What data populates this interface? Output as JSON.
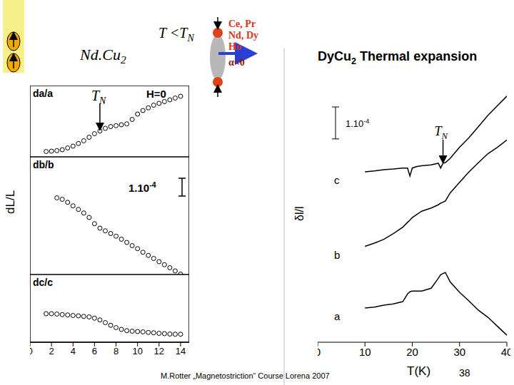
{
  "slide": {
    "formula": "Nd.Cu2",
    "condition": "T <TN",
    "legend_lines": [
      "Ce, Pr",
      "Nd, Dy",
      "Ho",
      "α<0"
    ],
    "shared_y_label": "dL/L",
    "footer": "M.Rotter „Magnetostriction“ Course Lorena 2007",
    "page": "38"
  },
  "chart_data": [
    {
      "type": "scatter",
      "title": "da/a",
      "marker": "circle",
      "color": "#000000",
      "x": [
        1.5,
        2,
        2.5,
        3,
        3.5,
        4,
        4.5,
        5,
        5.5,
        6,
        6.5,
        7,
        7.5,
        8,
        8.5,
        9,
        9.5,
        10,
        10.5,
        11,
        11.5,
        12,
        12.5,
        13,
        13.5,
        14
      ],
      "values": [
        0.3,
        0.32,
        0.35,
        0.4,
        0.5,
        0.6,
        0.75,
        0.9,
        1.1,
        1.3,
        1.45,
        1.6,
        1.7,
        1.75,
        1.8,
        1.85,
        2.1,
        2.4,
        2.6,
        2.75,
        2.9,
        3.0,
        3.1,
        3.2,
        3.3,
        3.4
      ],
      "xlim": [
        0,
        14.8
      ],
      "xticks": [
        0,
        2,
        4,
        6,
        8,
        10,
        12,
        14
      ],
      "ylim": [
        0,
        4
      ],
      "tick_labels": false,
      "annotations": [
        {
          "text": "TN",
          "x": 6.5
        },
        {
          "text": "H=0"
        }
      ]
    },
    {
      "type": "scatter",
      "title": "db/b",
      "marker": "circle",
      "color": "#000000",
      "x": [
        2.5,
        3,
        3.5,
        4,
        4.5,
        5,
        5.5,
        6,
        6.5,
        7,
        7.5,
        8,
        8.5,
        9,
        9.5,
        10,
        10.5,
        11,
        11.5,
        12,
        12.5,
        13,
        13.5,
        14
      ],
      "values": [
        4.3,
        4.22,
        4.05,
        3.85,
        3.65,
        3.45,
        3.2,
        2.85,
        2.6,
        2.45,
        2.3,
        2.15,
        1.98,
        1.8,
        1.62,
        1.45,
        1.25,
        1.07,
        0.9,
        0.72,
        0.55,
        0.38,
        0.2,
        0.02
      ],
      "xlim": [
        0,
        14.8
      ],
      "xticks": [
        0,
        2,
        4,
        6,
        8,
        10,
        12,
        14
      ],
      "ylim": [
        0,
        6.6
      ],
      "tick_labels": false,
      "scale_bar": {
        "text": "1.10",
        "exponent": "-4",
        "value": 1
      }
    },
    {
      "type": "scatter",
      "title": "dc/c",
      "marker": "circle",
      "color": "#000000",
      "x": [
        1.5,
        2,
        2.5,
        3,
        3.5,
        4,
        4.5,
        5,
        5.5,
        6,
        6.5,
        7,
        7.5,
        8,
        8.5,
        9,
        9.5,
        10,
        10.5,
        11,
        11.5,
        12,
        12.5,
        13,
        13.5,
        14
      ],
      "values": [
        1.6,
        1.6,
        1.58,
        1.55,
        1.53,
        1.5,
        1.48,
        1.45,
        1.42,
        1.35,
        1.25,
        1.1,
        0.95,
        0.82,
        0.72,
        0.65,
        0.62,
        0.6,
        0.58,
        0.55,
        0.53,
        0.5,
        0.48,
        0.46,
        0.45,
        0.45
      ],
      "xlim": [
        0,
        14.8
      ],
      "xticks": [
        0,
        2,
        4,
        6,
        8,
        10,
        12,
        14
      ],
      "ylim": [
        0,
        3.8
      ],
      "tick_labels": "x"
    },
    {
      "type": "line",
      "title": "DyCu2 Thermal expansion",
      "x_label": "T(K)",
      "y_label": "δl/l",
      "xlim": [
        0,
        40
      ],
      "xticks": [
        0,
        10,
        20,
        30,
        40
      ],
      "ylim": [
        0,
        8.7
      ],
      "tick_labels": "x",
      "x": [
        10,
        12,
        14,
        16,
        18,
        19,
        19.5,
        20,
        21,
        22,
        24,
        25.5,
        26,
        26.5,
        27,
        28,
        30,
        32,
        34,
        36,
        38,
        40
      ],
      "series": [
        {
          "name": "c",
          "color": "#000000",
          "values": [
            5.33,
            5.36,
            5.4,
            5.42,
            5.45,
            5.45,
            5.2,
            5.45,
            5.5,
            5.52,
            5.55,
            5.6,
            5.45,
            5.6,
            5.62,
            5.75,
            6.1,
            6.4,
            6.75,
            7.1,
            7.4,
            7.7
          ]
        },
        {
          "name": "b",
          "color": "#000000",
          "values": [
            3.0,
            3.1,
            3.22,
            3.4,
            3.6,
            3.75,
            3.82,
            3.9,
            4.0,
            4.1,
            4.2,
            4.3,
            4.35,
            4.38,
            4.42,
            4.67,
            5.0,
            5.33,
            5.62,
            5.9,
            6.1,
            6.33
          ]
        },
        {
          "name": "a",
          "color": "#000000",
          "values": [
            1.07,
            1.1,
            1.16,
            1.2,
            1.27,
            1.51,
            1.58,
            1.6,
            1.6,
            1.6,
            1.69,
            2.0,
            2.11,
            2.15,
            2.18,
            1.89,
            1.56,
            1.29,
            1.0,
            0.78,
            0.5,
            0.22
          ]
        }
      ],
      "annotations": [
        {
          "text": "TN",
          "x": 26.5
        }
      ],
      "scale_bar": {
        "text": "1.10",
        "exponent": "-4",
        "value": 1
      }
    }
  ]
}
